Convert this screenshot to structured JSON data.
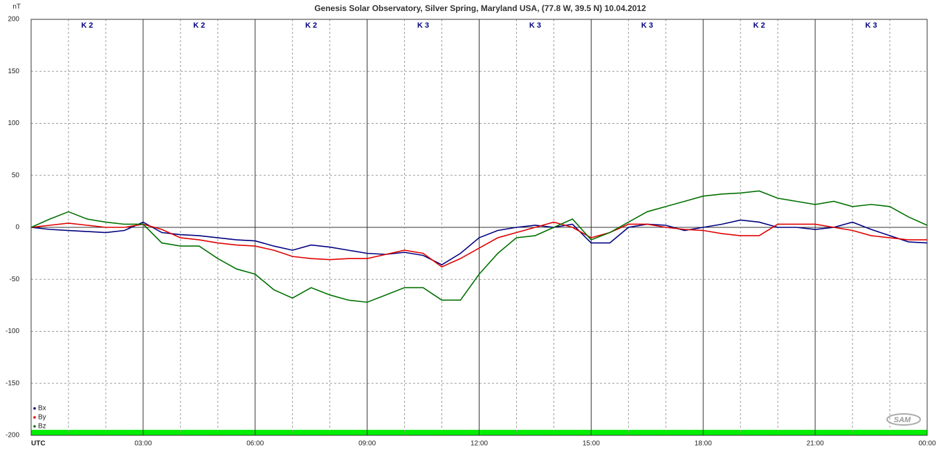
{
  "chart_data": {
    "type": "line",
    "title": "Genesis Solar Observatory, Silver Spring, Maryland USA, (77.8 W, 39.5 N)  10.04.2012",
    "y_unit": "nT",
    "logo": "SAM",
    "k_labels": [
      "K 2",
      "K 2",
      "K 2",
      "K 3",
      "K 3",
      "K 3",
      "K 2",
      "K 3"
    ],
    "x": [
      0,
      0.5,
      1,
      1.5,
      2,
      2.5,
      3,
      3.5,
      4,
      4.5,
      5,
      5.5,
      6,
      6.5,
      7,
      7.5,
      8,
      8.5,
      9,
      9.5,
      10,
      10.5,
      11,
      11.5,
      12,
      12.5,
      13,
      13.5,
      14,
      14.5,
      15,
      15.5,
      16,
      16.5,
      17,
      17.5,
      18,
      18.5,
      19,
      19.5,
      20,
      20.5,
      21,
      21.5,
      22,
      22.5,
      23,
      23.5,
      24
    ],
    "xlim": [
      0,
      24
    ],
    "xticks": [
      {
        "value": 0,
        "label": "UTC"
      },
      {
        "value": 3,
        "label": "03:00"
      },
      {
        "value": 6,
        "label": "06:00"
      },
      {
        "value": 9,
        "label": "09:00"
      },
      {
        "value": 12,
        "label": "12:00"
      },
      {
        "value": 15,
        "label": "15:00"
      },
      {
        "value": 18,
        "label": "18:00"
      },
      {
        "value": 21,
        "label": "21:00"
      },
      {
        "value": 24,
        "label": "00:00"
      }
    ],
    "x_minor_ticks": [
      1,
      2,
      4,
      5,
      7,
      8,
      10,
      11,
      13,
      14,
      16,
      17,
      19,
      20,
      22,
      23
    ],
    "ylim": [
      -200,
      200
    ],
    "yticks": [
      200,
      150,
      100,
      50,
      0,
      -50,
      -100,
      -150,
      -200
    ],
    "grid": true,
    "legend": "bottom-left",
    "series": [
      {
        "name": "Bx",
        "color": "#000080",
        "values": [
          0,
          -2,
          -3,
          -4,
          -5,
          -3,
          5,
          -5,
          -7,
          -8,
          -10,
          -12,
          -13,
          -18,
          -22,
          -17,
          -19,
          -22,
          -25,
          -26,
          -24,
          -27,
          -36,
          -25,
          -10,
          -3,
          0,
          2,
          0,
          3,
          -15,
          -15,
          0,
          3,
          2,
          -3,
          0,
          3,
          7,
          5,
          0,
          0,
          -2,
          0,
          5,
          -2,
          -8,
          -14,
          -15
        ]
      },
      {
        "name": "By",
        "color": "#e00000",
        "values": [
          0,
          2,
          4,
          2,
          0,
          0,
          3,
          -2,
          -10,
          -12,
          -15,
          -17,
          -18,
          -22,
          -28,
          -30,
          -31,
          -30,
          -30,
          -26,
          -22,
          -25,
          -38,
          -30,
          -20,
          -10,
          -5,
          0,
          5,
          0,
          -10,
          -5,
          3,
          3,
          0,
          -2,
          -3,
          -6,
          -8,
          -8,
          3,
          3,
          3,
          0,
          -3,
          -8,
          -10,
          -12,
          -12
        ]
      },
      {
        "name": "Bz",
        "color": "#007000",
        "values": [
          0,
          8,
          15,
          8,
          5,
          3,
          3,
          -15,
          -18,
          -18,
          -30,
          -40,
          -45,
          -60,
          -68,
          -58,
          -65,
          -70,
          -72,
          -65,
          -58,
          -58,
          -70,
          -70,
          -45,
          -25,
          -10,
          -8,
          0,
          8,
          -12,
          -5,
          5,
          15,
          20,
          25,
          30,
          32,
          33,
          35,
          28,
          25,
          22,
          25,
          20,
          22,
          20,
          10,
          2
        ]
      }
    ]
  }
}
